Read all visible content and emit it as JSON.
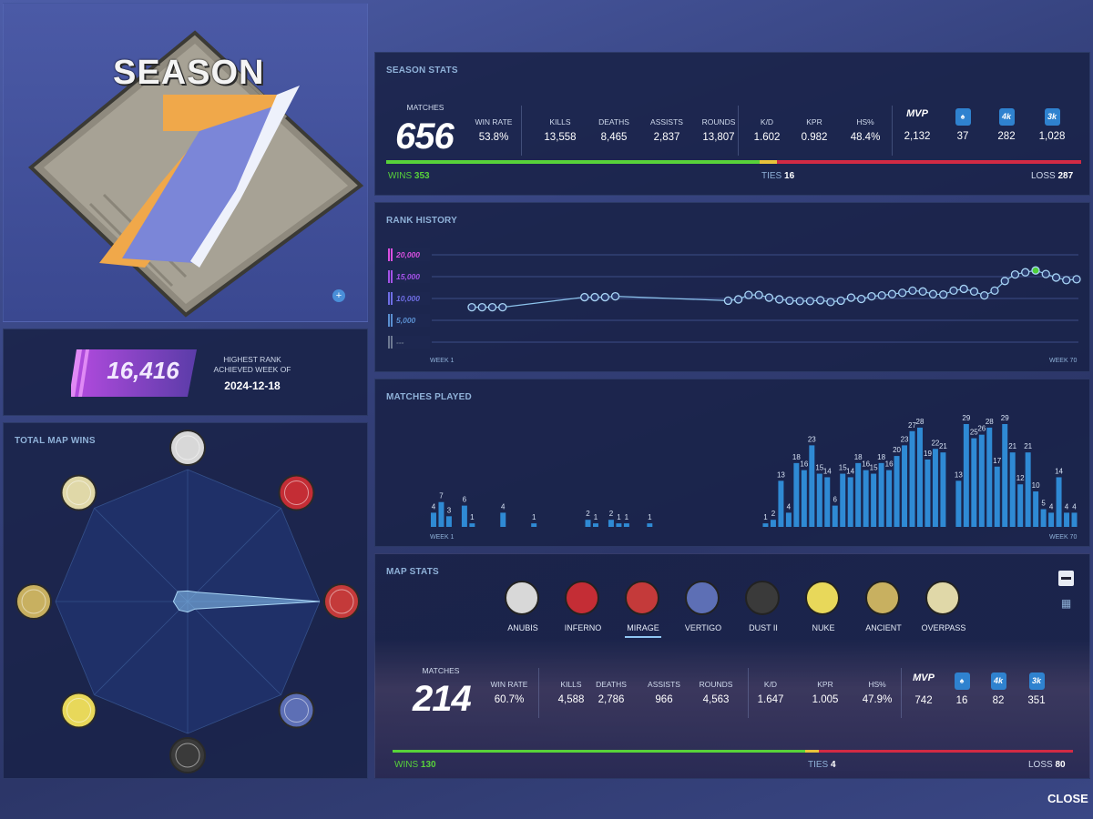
{
  "season": {
    "title": "SEASON",
    "number": "1"
  },
  "highest_rank": {
    "value": "16,416",
    "label": "HIGHEST RANK ACHIEVED WEEK OF",
    "date": "2024-12-18"
  },
  "season_stats": {
    "title": "SEASON STATS",
    "matches_label": "MATCHES",
    "matches": "656",
    "stats": [
      {
        "label": "WIN RATE",
        "value": "53.8%"
      },
      {
        "label": "KILLS",
        "value": "13,558"
      },
      {
        "label": "DEATHS",
        "value": "8,465"
      },
      {
        "label": "ASSISTS",
        "value": "2,837"
      },
      {
        "label": "ROUNDS",
        "value": "13,807"
      },
      {
        "label": "K/D",
        "value": "1.602"
      },
      {
        "label": "KPR",
        "value": "0.982"
      },
      {
        "label": "HS%",
        "value": "48.4%"
      }
    ],
    "badges": [
      {
        "label": "MVP",
        "value": "2,132",
        "icon": "mvp-star-icon"
      },
      {
        "label": "",
        "value": "37",
        "icon": "ace-spade-icon"
      },
      {
        "label": "4k",
        "value": "282",
        "icon": "4k-badge-icon"
      },
      {
        "label": "3k",
        "value": "1,028",
        "icon": "3k-badge-icon"
      }
    ],
    "wins_label": "WINS",
    "wins": "353",
    "ties_label": "TIES",
    "ties": "16",
    "loss_label": "LOSS",
    "loss": "287",
    "wins_share": 0.538,
    "ties_share": 0.024
  },
  "rank_history": {
    "title": "RANK HISTORY",
    "tiers": [
      {
        "label": "20,000",
        "color": "#d94fe0"
      },
      {
        "label": "15,000",
        "color": "#a452e8"
      },
      {
        "label": "10,000",
        "color": "#6f6ee6"
      },
      {
        "label": "5,000",
        "color": "#5a8fd0"
      },
      {
        "label": "---",
        "color": "#6c7891"
      }
    ],
    "x_start": "WEEK 1",
    "x_end": "WEEK 70"
  },
  "chart_data": {
    "type": "bar",
    "title": "MATCHES PLAYED",
    "x_start": "WEEK 1",
    "x_end": "WEEK 70",
    "values": [
      4,
      7,
      3,
      0,
      6,
      1,
      0,
      0,
      0,
      4,
      0,
      0,
      0,
      1,
      0,
      0,
      0,
      0,
      0,
      0,
      2,
      1,
      0,
      2,
      1,
      1,
      0,
      0,
      1,
      0,
      0,
      0,
      0,
      0,
      0,
      0,
      0,
      0,
      0,
      0,
      0,
      0,
      0,
      1,
      2,
      13,
      4,
      18,
      16,
      23,
      15,
      14,
      6,
      15,
      14,
      18,
      16,
      15,
      18,
      16,
      20,
      23,
      27,
      28,
      19,
      22,
      21,
      0,
      13,
      29,
      25,
      26,
      28,
      17,
      29,
      21,
      12,
      21,
      10,
      5,
      4,
      14,
      4,
      4
    ]
  },
  "rank_chart": {
    "points": [
      8000,
      8000,
      8000,
      8000,
      null,
      null,
      null,
      null,
      null,
      null,
      null,
      10300,
      10300,
      10300,
      10500,
      null,
      null,
      null,
      null,
      null,
      null,
      null,
      null,
      null,
      null,
      9500,
      9800,
      10800,
      10800,
      10200,
      9800,
      9500,
      9400,
      9400,
      9600,
      9200,
      9500,
      10200,
      9900,
      10500,
      10700,
      11000,
      11300,
      11800,
      11600,
      11000,
      10900,
      11800,
      12200,
      11600,
      10700,
      11800,
      14000,
      15500,
      16000,
      16416,
      15600,
      14800,
      14200,
      14400
    ]
  },
  "map_wins": {
    "title": "TOTAL MAP WINS",
    "maps": [
      "ANUBIS",
      "INFERNO",
      "MIRAGE",
      "VERTIGO",
      "DUST II",
      "NUKE",
      "ANCIENT",
      "OVERPASS"
    ],
    "values": [
      10,
      13,
      130,
      10,
      10,
      12,
      14,
      14
    ]
  },
  "map_stats": {
    "title": "MAP STATS",
    "tabs": [
      "ANUBIS",
      "INFERNO",
      "MIRAGE",
      "VERTIGO",
      "DUST II",
      "NUKE",
      "ANCIENT",
      "OVERPASS"
    ],
    "selected": "MIRAGE",
    "matches_label": "MATCHES",
    "matches": "214",
    "stats": [
      {
        "label": "WIN RATE",
        "value": "60.7%"
      },
      {
        "label": "KILLS",
        "value": "4,588"
      },
      {
        "label": "DEATHS",
        "value": "2,786"
      },
      {
        "label": "ASSISTS",
        "value": "966"
      },
      {
        "label": "ROUNDS",
        "value": "4,563"
      },
      {
        "label": "K/D",
        "value": "1.647"
      },
      {
        "label": "KPR",
        "value": "1.005"
      },
      {
        "label": "HS%",
        "value": "47.9%"
      }
    ],
    "badges": [
      {
        "label": "MVP",
        "value": "742"
      },
      {
        "label": "",
        "value": "16"
      },
      {
        "label": "4k",
        "value": "82"
      },
      {
        "label": "3k",
        "value": "351"
      }
    ],
    "wins_label": "WINS",
    "wins": "130",
    "ties_label": "TIES",
    "ties": "4",
    "loss_label": "LOSS",
    "loss": "80",
    "wins_share": 0.607,
    "ties_share": 0.019
  },
  "close_label": "CLOSE"
}
